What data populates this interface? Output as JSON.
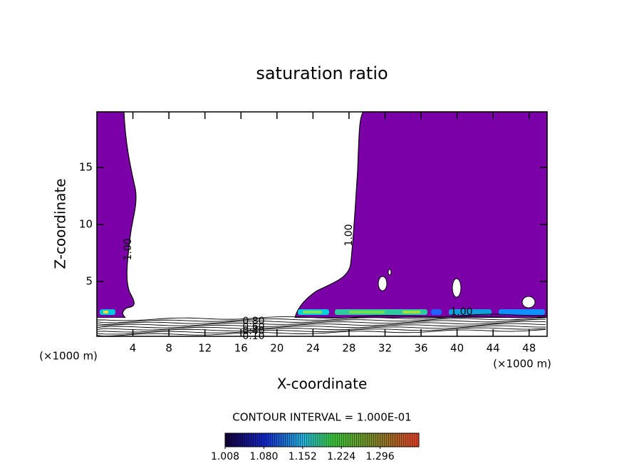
{
  "chart_data": {
    "type": "contour",
    "title": "saturation ratio",
    "x_label": "X-coordinate",
    "y_label": "Z-coordinate",
    "x_unit": "(×1000 m)",
    "xlim": [
      0,
      50
    ],
    "xticks": [
      4,
      8,
      12,
      16,
      20,
      24,
      28,
      32,
      36,
      40,
      44,
      48
    ],
    "ylim": [
      0,
      20
    ],
    "yticks": [
      5,
      10,
      15
    ],
    "fill_color": "#7b00a8",
    "contour_labels": [
      "1.00",
      "1.00",
      "1.00",
      "0.80",
      "0.60",
      "0.40",
      "0.10"
    ],
    "contour_interval": "CONTOUR INTERVAL = 1.000E-01",
    "colorbar": {
      "clim": [
        1.008,
        1.368
      ],
      "ticks": [
        {
          "value": 1.008,
          "label": "1.008"
        },
        {
          "value": 1.08,
          "label": "1.080"
        },
        {
          "value": 1.152,
          "label": "1.152"
        },
        {
          "value": 1.224,
          "label": "1.224"
        },
        {
          "value": 1.296,
          "label": "1.296"
        }
      ]
    }
  }
}
